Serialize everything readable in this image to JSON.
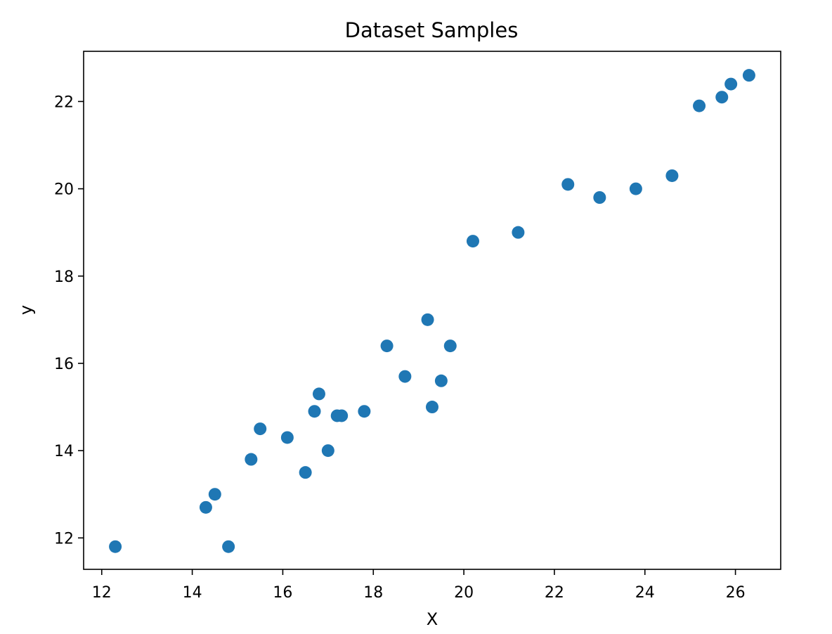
{
  "chart_data": {
    "type": "scatter",
    "title": "Dataset Samples",
    "xlabel": "X",
    "ylabel": "y",
    "xlim": [
      11.6,
      27.0
    ],
    "ylim": [
      11.28,
      23.15
    ],
    "xticks": [
      12,
      14,
      16,
      18,
      20,
      22,
      24,
      26
    ],
    "yticks": [
      12,
      14,
      16,
      18,
      20,
      22
    ],
    "grid": false,
    "legend": "none",
    "colors": {
      "marker": "#1f77b4",
      "axis": "#000000",
      "background": "#ffffff"
    },
    "series": [
      {
        "points": [
          {
            "x": 12.3,
            "y": 11.8
          },
          {
            "x": 14.3,
            "y": 12.7
          },
          {
            "x": 14.5,
            "y": 13.0
          },
          {
            "x": 14.8,
            "y": 11.8
          },
          {
            "x": 15.3,
            "y": 13.8
          },
          {
            "x": 15.5,
            "y": 14.5
          },
          {
            "x": 16.1,
            "y": 14.3
          },
          {
            "x": 16.5,
            "y": 13.5
          },
          {
            "x": 16.7,
            "y": 14.9
          },
          {
            "x": 16.8,
            "y": 15.3
          },
          {
            "x": 17.0,
            "y": 14.0
          },
          {
            "x": 17.2,
            "y": 14.8
          },
          {
            "x": 17.3,
            "y": 14.8
          },
          {
            "x": 17.8,
            "y": 14.9
          },
          {
            "x": 18.3,
            "y": 16.4
          },
          {
            "x": 18.7,
            "y": 15.7
          },
          {
            "x": 19.2,
            "y": 17.0
          },
          {
            "x": 19.3,
            "y": 15.0
          },
          {
            "x": 19.5,
            "y": 15.6
          },
          {
            "x": 19.7,
            "y": 16.4
          },
          {
            "x": 20.2,
            "y": 18.8
          },
          {
            "x": 21.2,
            "y": 19.0
          },
          {
            "x": 22.3,
            "y": 20.1
          },
          {
            "x": 23.0,
            "y": 19.8
          },
          {
            "x": 23.8,
            "y": 20.0
          },
          {
            "x": 24.6,
            "y": 20.3
          },
          {
            "x": 25.2,
            "y": 21.9
          },
          {
            "x": 25.7,
            "y": 22.1
          },
          {
            "x": 25.9,
            "y": 22.4
          },
          {
            "x": 26.3,
            "y": 22.6
          }
        ]
      }
    ]
  }
}
